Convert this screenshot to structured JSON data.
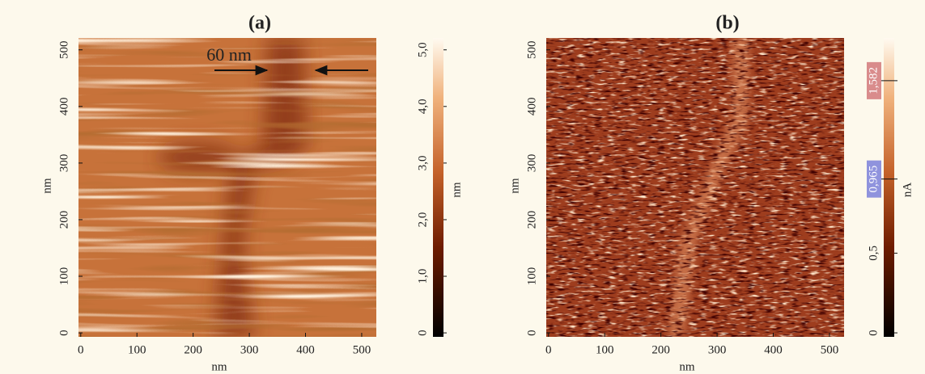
{
  "chart_data": [
    {
      "type": "image",
      "title": "(a)",
      "x_label": "nm",
      "y_label": "nm",
      "xlim": [
        -4,
        526
      ],
      "ylim": [
        -7,
        521
      ],
      "xticks": [
        0,
        100,
        200,
        300,
        400,
        500
      ],
      "yticks": [
        0,
        100,
        200,
        300,
        400,
        500
      ],
      "annotation": "60 nm",
      "colorbar": {
        "label": "nm",
        "clim": [
          -0.07,
          5.21
        ],
        "ticks": [
          0,
          {
            "value": 1,
            "label": "1,0"
          },
          {
            "value": 2,
            "label": "2,0"
          },
          {
            "value": 3,
            "label": "3,0"
          },
          {
            "value": 4,
            "label": "4,0"
          },
          {
            "value": 5,
            "label": "5,0"
          }
        ]
      }
    },
    {
      "type": "image",
      "title": "(b)",
      "x_label": "nm",
      "y_label": "nm",
      "xlim": [
        -4,
        526
      ],
      "ylim": [
        -7,
        521
      ],
      "xticks": [
        0,
        100,
        200,
        300,
        400,
        500
      ],
      "yticks": [
        0,
        100,
        200,
        300,
        400,
        500
      ],
      "colorbar": {
        "label": "nA",
        "clim": [
          -0.025,
          1.85
        ],
        "ticks": [
          0,
          {
            "value": 0.5,
            "label": "0,5"
          }
        ],
        "markers": [
          {
            "value": 0.965,
            "label": "0,965",
            "color": "#8f93dd"
          },
          {
            "value": 1.582,
            "label": "1,582",
            "color": "#d98c8c"
          }
        ]
      }
    }
  ]
}
